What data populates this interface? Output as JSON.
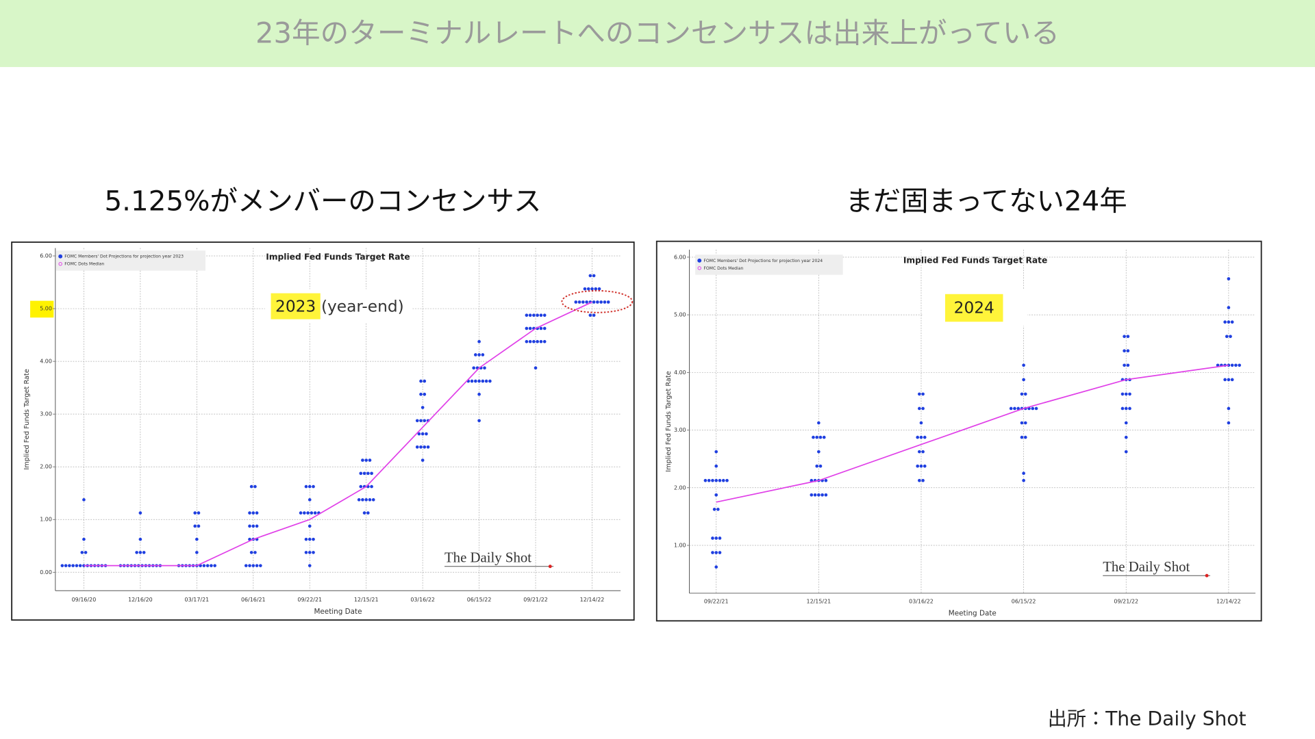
{
  "slide_title": "23年のターミナルレートへのコンセンサスは出来上がっている",
  "source": "出所：The Daily Shot",
  "chart_data": [
    {
      "type": "scatter",
      "headline": "5.125%がメンバーのコンセンサス",
      "title": "Implied Fed Funds Target Rate",
      "y_label": "Implied Fed Funds Target Rate",
      "x_label": "Meeting Date",
      "highlight": "2023",
      "note": "(year-end)",
      "watermark": "The Daily Shot",
      "categories": [
        "09/16/20",
        "12/16/20",
        "03/17/21",
        "06/16/21",
        "09/22/21",
        "12/15/21",
        "03/16/22",
        "06/15/22",
        "09/21/22",
        "12/14/22"
      ],
      "ylim": [
        -0.35,
        6.15
      ],
      "yticks": [
        {
          "value": 0,
          "label": "0.00"
        },
        {
          "value": 1,
          "label": "1.00"
        },
        {
          "value": 2,
          "label": "2.00"
        },
        {
          "value": 3,
          "label": "3.00"
        },
        {
          "value": 4,
          "label": "4.00"
        },
        {
          "value": 5,
          "label": "5.00"
        },
        {
          "value": 6,
          "label": "6.00"
        }
      ],
      "grid": true,
      "series": [
        {
          "name": "FOMC Members' Dot Projections for projection year 2023",
          "color": "#1f3fe0",
          "values": [
            [
              0.125,
              0.125,
              0.125,
              0.125,
              0.125,
              0.125,
              0.125,
              0.125,
              0.125,
              0.125,
              0.125,
              0.125,
              0.125,
              0.375,
              0.375,
              0.625,
              1.375
            ],
            [
              0.125,
              0.125,
              0.125,
              0.125,
              0.125,
              0.125,
              0.125,
              0.125,
              0.125,
              0.125,
              0.125,
              0.125,
              0.375,
              0.375,
              0.375,
              0.625,
              1.125
            ],
            [
              0.125,
              0.125,
              0.125,
              0.125,
              0.125,
              0.125,
              0.125,
              0.125,
              0.125,
              0.125,
              0.125,
              0.375,
              0.625,
              0.875,
              0.875,
              1.125,
              1.125
            ],
            [
              0.125,
              0.125,
              0.125,
              0.125,
              0.125,
              0.375,
              0.375,
              0.625,
              0.625,
              0.625,
              0.875,
              0.875,
              0.875,
              1.125,
              1.125,
              1.125,
              1.625,
              1.625
            ],
            [
              0.125,
              0.375,
              0.375,
              0.375,
              0.625,
              0.625,
              0.625,
              0.875,
              1.125,
              1.125,
              1.125,
              1.125,
              1.125,
              1.125,
              1.375,
              1.625,
              1.625,
              1.625
            ],
            [
              1.125,
              1.125,
              1.375,
              1.375,
              1.375,
              1.375,
              1.375,
              1.625,
              1.625,
              1.625,
              1.625,
              1.875,
              1.875,
              1.875,
              1.875,
              2.125,
              2.125,
              2.125
            ],
            [
              2.125,
              2.375,
              2.375,
              2.375,
              2.375,
              2.625,
              2.625,
              2.625,
              2.875,
              2.875,
              2.875,
              2.875,
              3.125,
              3.375,
              3.375,
              3.625,
              3.625
            ],
            [
              2.875,
              3.375,
              3.625,
              3.625,
              3.625,
              3.625,
              3.625,
              3.625,
              3.625,
              3.875,
              3.875,
              3.875,
              3.875,
              4.125,
              4.125,
              4.125,
              4.375
            ],
            [
              3.875,
              4.375,
              4.375,
              4.375,
              4.375,
              4.375,
              4.375,
              4.625,
              4.625,
              4.625,
              4.625,
              4.625,
              4.625,
              4.875,
              4.875,
              4.875,
              4.875,
              4.875,
              4.875
            ],
            [
              4.875,
              4.875,
              5.125,
              5.125,
              5.125,
              5.125,
              5.125,
              5.125,
              5.125,
              5.125,
              5.125,
              5.125,
              5.375,
              5.375,
              5.375,
              5.375,
              5.375,
              5.625,
              5.625
            ]
          ]
        },
        {
          "name": "FOMC Dots Median",
          "color": "#e040e8",
          "values": [
            0.125,
            0.125,
            0.125,
            0.625,
            1.0,
            1.625,
            2.75,
            3.875,
            4.625,
            5.125
          ]
        }
      ]
    },
    {
      "type": "scatter",
      "headline": "まだ固まってない24年",
      "title": "Implied Fed Funds Target Rate",
      "y_label": "Implied Fed Funds Target Rate",
      "x_label": "Meeting Date",
      "highlight": "2024",
      "watermark": "The Daily Shot",
      "categories": [
        "09/22/21",
        "12/15/21",
        "03/16/22",
        "06/15/22",
        "09/21/22",
        "12/14/22"
      ],
      "ylim": [
        0.17,
        6.13
      ],
      "yticks": [
        {
          "value": 1,
          "label": "1.00"
        },
        {
          "value": 2,
          "label": "2.00"
        },
        {
          "value": 3,
          "label": "3.00"
        },
        {
          "value": 4,
          "label": "4.00"
        },
        {
          "value": 5,
          "label": "5.00"
        },
        {
          "value": 6,
          "label": "6.00"
        }
      ],
      "grid": true,
      "series": [
        {
          "name": "FOMC Members' Dot Projections for projection year 2024",
          "color": "#1f3fe0",
          "values": [
            [
              0.625,
              0.875,
              0.875,
              0.875,
              1.125,
              1.125,
              1.125,
              1.625,
              1.625,
              1.875,
              2.125,
              2.125,
              2.125,
              2.125,
              2.125,
              2.125,
              2.125,
              2.375,
              2.625
            ],
            [
              1.875,
              1.875,
              1.875,
              1.875,
              1.875,
              2.125,
              2.125,
              2.125,
              2.125,
              2.125,
              2.375,
              2.375,
              2.625,
              2.875,
              2.875,
              2.875,
              2.875,
              3.125
            ],
            [
              2.125,
              2.125,
              2.375,
              2.375,
              2.375,
              2.625,
              2.625,
              2.875,
              2.875,
              2.875,
              3.125,
              3.375,
              3.375,
              3.625,
              3.625
            ],
            [
              2.125,
              2.25,
              2.875,
              2.875,
              3.125,
              3.125,
              3.375,
              3.375,
              3.375,
              3.375,
              3.375,
              3.375,
              3.375,
              3.375,
              3.625,
              3.625,
              3.875,
              4.125
            ],
            [
              2.625,
              2.875,
              3.125,
              3.375,
              3.375,
              3.375,
              3.625,
              3.625,
              3.625,
              3.875,
              3.875,
              3.875,
              4.125,
              4.125,
              4.375,
              4.375,
              4.625,
              4.625
            ],
            [
              3.125,
              3.375,
              3.875,
              3.875,
              3.875,
              4.125,
              4.125,
              4.125,
              4.125,
              4.125,
              4.125,
              4.125,
              4.625,
              4.625,
              4.875,
              4.875,
              4.875,
              5.125,
              5.625
            ]
          ]
        },
        {
          "name": "FOMC Dots Median",
          "color": "#e040e8",
          "values": [
            1.75,
            2.125,
            2.75,
            3.375,
            3.875,
            4.125
          ]
        }
      ]
    }
  ]
}
